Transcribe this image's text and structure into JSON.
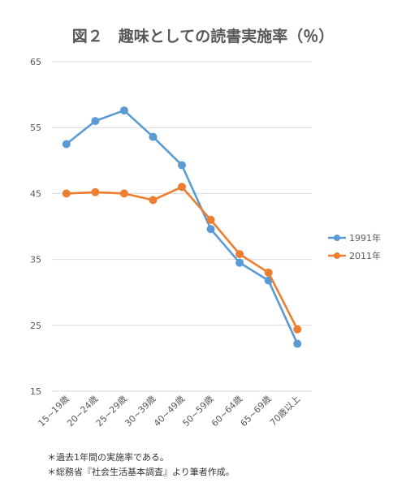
{
  "chart_data": {
    "type": "line",
    "title": "図２　趣味としての読書実施率（％）",
    "xlabel": "",
    "ylabel": "",
    "categories": [
      "15~19歳",
      "20~24歳",
      "25~29歳",
      "30~39歳",
      "40~49歳",
      "50~59歳",
      "60~64歳",
      "65~69歳",
      "70歳以上"
    ],
    "ylim": [
      15,
      65
    ],
    "yticks": [
      15,
      25,
      35,
      45,
      55,
      65
    ],
    "grid": true,
    "legend_position": "right",
    "series": [
      {
        "name": "1991年",
        "color": "#5b9bd5",
        "values": [
          52.5,
          56.0,
          57.6,
          53.6,
          49.3,
          39.6,
          34.5,
          31.8,
          22.2
        ]
      },
      {
        "name": "2011年",
        "color": "#ed7d31",
        "values": [
          45.0,
          45.2,
          45.0,
          44.0,
          46.0,
          41.0,
          35.8,
          33.0,
          24.4
        ]
      }
    ]
  },
  "notes": [
    "＊過去1年間の実施率である。",
    "＊総務省『社会生活基本調査』より筆者作成。"
  ]
}
